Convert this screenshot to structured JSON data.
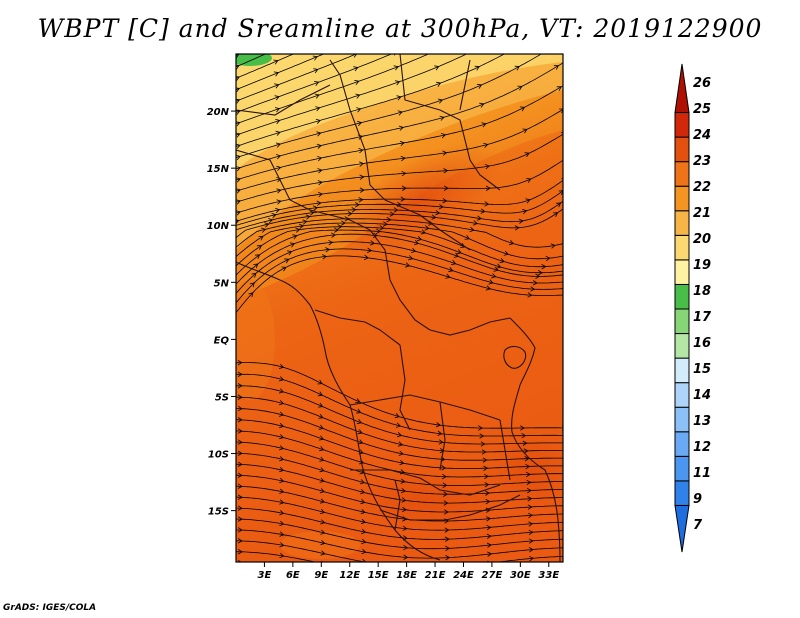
{
  "title": "WBPT [C] and Sreamline at 300hPa, VT: 2019122900",
  "credit": "GrADS: IGES/COLA",
  "map": {
    "variable": "WBPT",
    "units": "C",
    "level": "300hPa",
    "valid_time": "2019122900",
    "lon_labels": [
      "3E",
      "6E",
      "9E",
      "12E",
      "15E",
      "18E",
      "21E",
      "24E",
      "27E",
      "30E",
      "33E"
    ],
    "lat_labels": [
      "20N",
      "15N",
      "10N",
      "5N",
      "EQ",
      "5S",
      "10S",
      "15S"
    ],
    "lon_range": [
      0,
      34.5
    ],
    "lat_range": [
      -19.5,
      25
    ]
  },
  "colorbar": {
    "labels": [
      "7",
      "9",
      "11",
      "12",
      "13",
      "14",
      "15",
      "16",
      "17",
      "18",
      "19",
      "20",
      "21",
      "22",
      "23",
      "24",
      "25",
      "26"
    ],
    "colors": [
      "#1e6ee0",
      "#2f82ea",
      "#4a96f0",
      "#6aaaf4",
      "#8cc0f8",
      "#aed4fa",
      "#d2ecfb",
      "#b4e6a6",
      "#86d678",
      "#48bd48",
      "#fff2a2",
      "#fbd970",
      "#f8b547",
      "#f49521",
      "#ef7417",
      "#e4500e",
      "#d02808",
      "#b01004"
    ]
  },
  "colors": {
    "background": "#ffffff",
    "stream": "#000000",
    "field_warm": "#e84a12",
    "field_mid": "#ef7417"
  }
}
